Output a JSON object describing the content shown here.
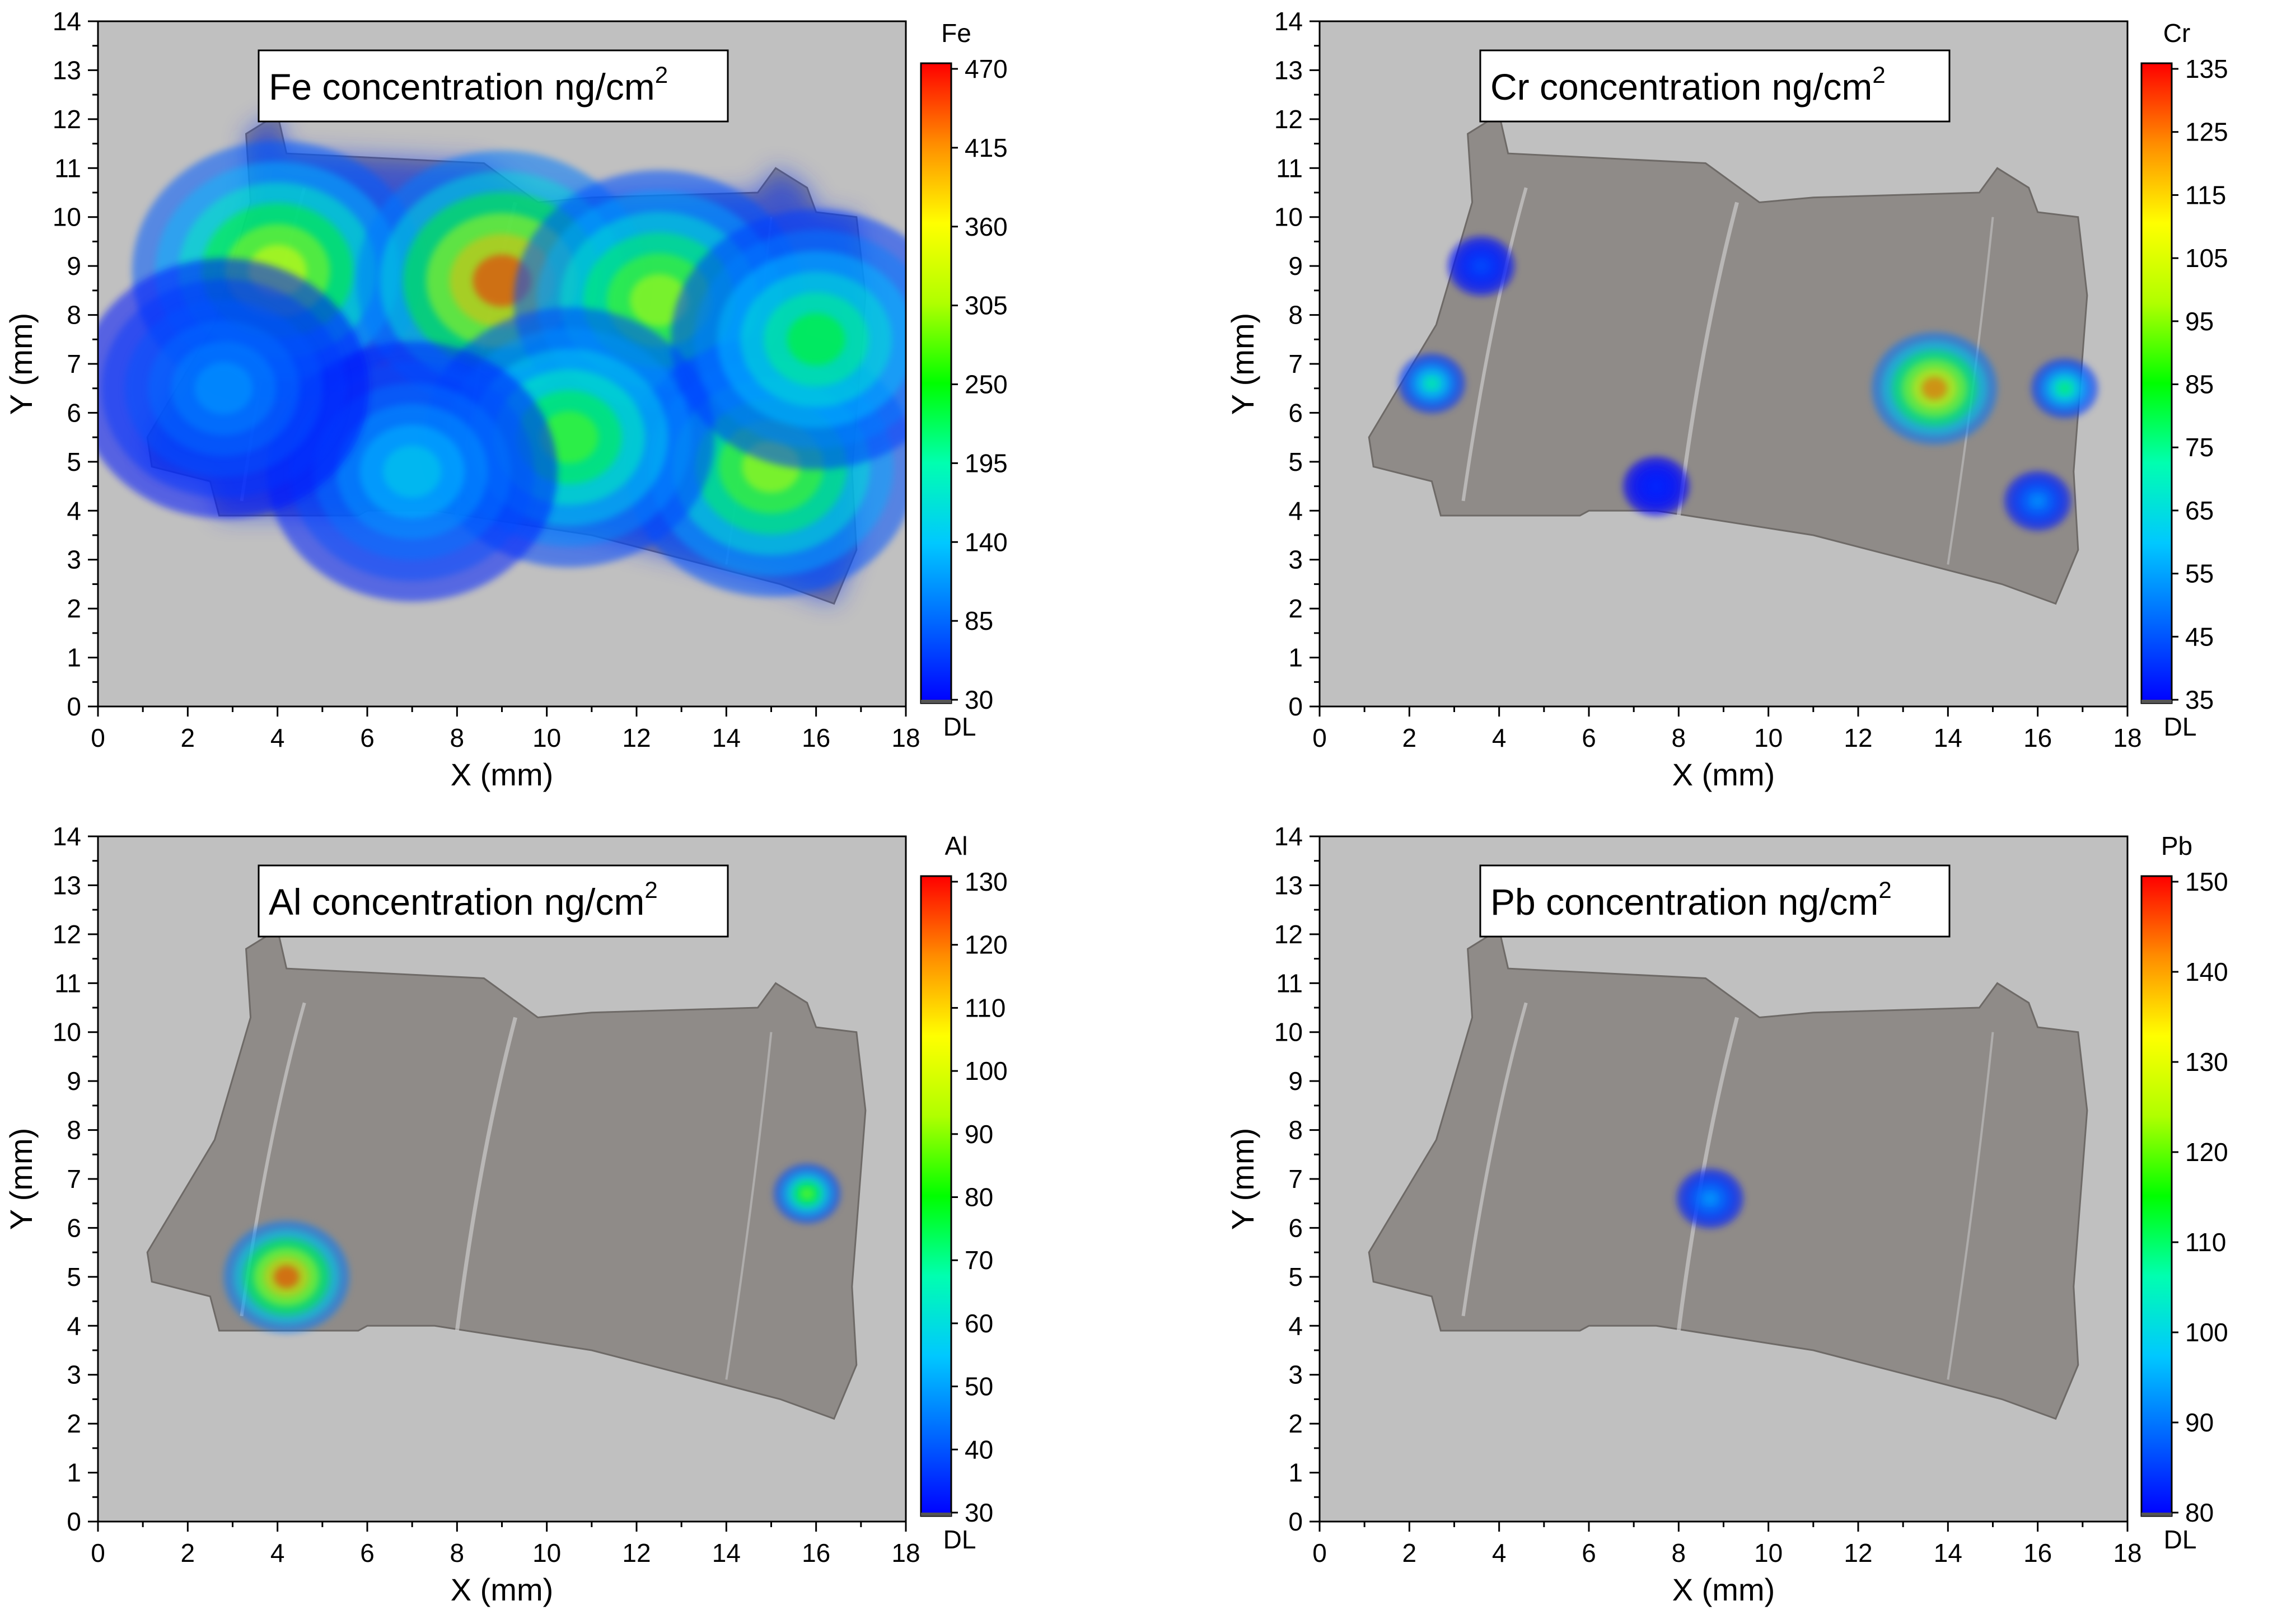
{
  "figure": {
    "background": "#ffffff",
    "plot_background": "#c0c0c0"
  },
  "chart_data": [
    {
      "type": "heatmap",
      "element": "Fe",
      "title": "Fe concentration ng/cm",
      "title_sup": "2",
      "xlabel": "X (mm)",
      "ylabel": "Y (mm)",
      "xlim": [
        0,
        18
      ],
      "ylim": [
        0,
        14
      ],
      "x_ticks": [
        "0",
        "2",
        "4",
        "6",
        "8",
        "10",
        "12",
        "14",
        "16",
        "18"
      ],
      "y_ticks": [
        "0",
        "1",
        "2",
        "3",
        "4",
        "5",
        "6",
        "7",
        "8",
        "9",
        "10",
        "11",
        "12",
        "13",
        "14"
      ],
      "colorbar": {
        "label": "Fe",
        "min_label": "DL",
        "range": [
          30,
          470
        ],
        "ticks": [
          "30",
          "85",
          "140",
          "195",
          "250",
          "305",
          "360",
          "415",
          "470"
        ]
      },
      "hotspots": [
        {
          "x": 4.0,
          "y": 8.9,
          "value": 360
        },
        {
          "x": 9.0,
          "y": 8.7,
          "value": 470
        },
        {
          "x": 12.5,
          "y": 8.3,
          "value": 330
        },
        {
          "x": 15.0,
          "y": 4.9,
          "value": 330
        },
        {
          "x": 10.5,
          "y": 5.5,
          "value": 280
        },
        {
          "x": 7.0,
          "y": 4.8,
          "value": 160
        },
        {
          "x": 2.8,
          "y": 6.5,
          "value": 120
        },
        {
          "x": 16.0,
          "y": 7.5,
          "value": 250
        }
      ]
    },
    {
      "type": "heatmap",
      "element": "Cr",
      "title": "Cr concentration ng/cm",
      "title_sup": "2",
      "xlabel": "X (mm)",
      "ylabel": "Y (mm)",
      "xlim": [
        0,
        18
      ],
      "ylim": [
        0,
        14
      ],
      "x_ticks": [
        "0",
        "2",
        "4",
        "6",
        "8",
        "10",
        "12",
        "14",
        "16",
        "18"
      ],
      "y_ticks": [
        "0",
        "1",
        "2",
        "3",
        "4",
        "5",
        "6",
        "7",
        "8",
        "9",
        "10",
        "11",
        "12",
        "13",
        "14"
      ],
      "colorbar": {
        "label": "Cr",
        "min_label": "DL",
        "range": [
          35,
          135
        ],
        "ticks": [
          "35",
          "45",
          "55",
          "65",
          "75",
          "85",
          "95",
          "105",
          "115",
          "125",
          "135"
        ]
      },
      "hotspots": [
        {
          "x": 3.6,
          "y": 9.0,
          "value": 45
        },
        {
          "x": 2.5,
          "y": 6.6,
          "value": 75
        },
        {
          "x": 13.7,
          "y": 6.5,
          "value": 130
        },
        {
          "x": 16.6,
          "y": 6.5,
          "value": 80
        },
        {
          "x": 16.0,
          "y": 4.2,
          "value": 55
        },
        {
          "x": 7.5,
          "y": 4.5,
          "value": 40
        }
      ]
    },
    {
      "type": "heatmap",
      "element": "Al",
      "title": "Al concentration ng/cm",
      "title_sup": "2",
      "xlabel": "X (mm)",
      "ylabel": "Y (mm)",
      "xlim": [
        0,
        18
      ],
      "ylim": [
        0,
        14
      ],
      "x_ticks": [
        "0",
        "2",
        "4",
        "6",
        "8",
        "10",
        "12",
        "14",
        "16",
        "18"
      ],
      "y_ticks": [
        "0",
        "1",
        "2",
        "3",
        "4",
        "5",
        "6",
        "7",
        "8",
        "9",
        "10",
        "11",
        "12",
        "13",
        "14"
      ],
      "colorbar": {
        "label": "Al",
        "min_label": "DL",
        "range": [
          30,
          130
        ],
        "ticks": [
          "30",
          "40",
          "50",
          "60",
          "70",
          "80",
          "90",
          "100",
          "110",
          "120",
          "130"
        ]
      },
      "hotspots": [
        {
          "x": 4.2,
          "y": 5.0,
          "value": 130
        },
        {
          "x": 15.8,
          "y": 6.7,
          "value": 90
        }
      ]
    },
    {
      "type": "heatmap",
      "element": "Pb",
      "title": "Pb concentration ng/cm",
      "title_sup": "2",
      "xlabel": "X (mm)",
      "ylabel": "Y (mm)",
      "xlim": [
        0,
        18
      ],
      "ylim": [
        0,
        14
      ],
      "x_ticks": [
        "0",
        "2",
        "4",
        "6",
        "8",
        "10",
        "12",
        "14",
        "16",
        "18"
      ],
      "y_ticks": [
        "0",
        "1",
        "2",
        "3",
        "4",
        "5",
        "6",
        "7",
        "8",
        "9",
        "10",
        "11",
        "12",
        "13",
        "14"
      ],
      "colorbar": {
        "label": "Pb",
        "min_label": "DL",
        "range": [
          80,
          150
        ],
        "ticks": [
          "80",
          "90",
          "100",
          "110",
          "120",
          "130",
          "140",
          "150"
        ]
      },
      "hotspots": [
        {
          "x": 8.7,
          "y": 6.6,
          "value": 95
        }
      ]
    }
  ]
}
